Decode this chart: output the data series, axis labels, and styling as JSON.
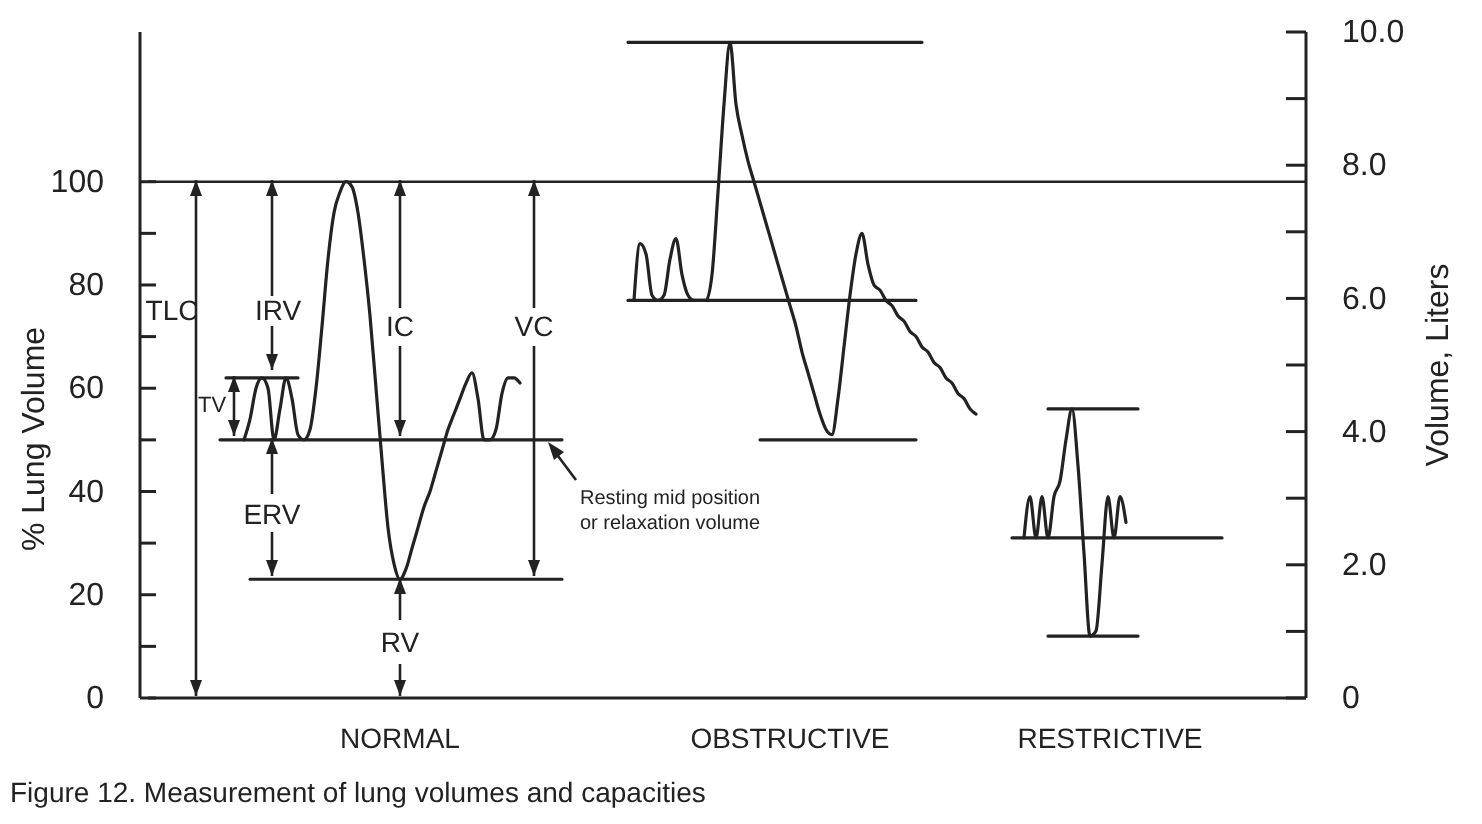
{
  "chart_data": {
    "type": "line",
    "ylabel": "% Lung Volume",
    "y2label": "Volume, Liters",
    "line_style": "solid",
    "categories": [
      null,
      null,
      null,
      null,
      null,
      null,
      null,
      null,
      null,
      null,
      null,
      null,
      null,
      null,
      null,
      null,
      null,
      null,
      null,
      null,
      null,
      null,
      null,
      null,
      null,
      null,
      null,
      null,
      null,
      null,
      null,
      null,
      null,
      null,
      null,
      null,
      null,
      null,
      null,
      null,
      null,
      null,
      null,
      null,
      null,
      null,
      null,
      null,
      null,
      null,
      null,
      null,
      null,
      null,
      null,
      null,
      null,
      null,
      null,
      null,
      null,
      null,
      null,
      null,
      null,
      null,
      null,
      null,
      null,
      null,
      null,
      null,
      null,
      null,
      null,
      null,
      null,
      null,
      null,
      null,
      null,
      null,
      null,
      null,
      null,
      null,
      null,
      null,
      null,
      null,
      null,
      null,
      null,
      null,
      null,
      null,
      null,
      null,
      null,
      null,
      null,
      null,
      null,
      null,
      null,
      null,
      null,
      null,
      null,
      null,
      null,
      null,
      null,
      null,
      null,
      null,
      null,
      null,
      null,
      null,
      null,
      null,
      null,
      null,
      null,
      null,
      null,
      null,
      null,
      null,
      null,
      null,
      null,
      null,
      null,
      null,
      null,
      null,
      null,
      null,
      null,
      null,
      null,
      null,
      null,
      null,
      null,
      null,
      null,
      null,
      null,
      null,
      null,
      null,
      null,
      null,
      null,
      null,
      null,
      null,
      null,
      null,
      null,
      null,
      null,
      null,
      null,
      null,
      null,
      null,
      null,
      null,
      null,
      null,
      null,
      null,
      null,
      null,
      null,
      null,
      null,
      null,
      null,
      null,
      null,
      null,
      null,
      null,
      null,
      null,
      null,
      null,
      null,
      null
    ],
    "ylim": [
      0,
      129
    ],
    "yticks": [
      0,
      {
        "value": 10,
        "label": null
      },
      20,
      {
        "value": 30,
        "label": null
      },
      40,
      {
        "value": 50,
        "label": null
      },
      60,
      {
        "value": 70,
        "label": null
      },
      80,
      {
        "value": 90,
        "label": null
      },
      100
    ],
    "y2lim": [
      0,
      10
    ],
    "y2ticks": [
      0,
      {
        "value": 1,
        "label": null
      },
      {
        "value": 2,
        "label": "2.0"
      },
      {
        "value": 3,
        "label": null
      },
      {
        "value": 4,
        "label": "4.0"
      },
      {
        "value": 5,
        "label": null
      },
      {
        "value": 6,
        "label": "6.0"
      },
      {
        "value": 7,
        "label": null
      },
      {
        "value": 8,
        "label": "8.0"
      },
      {
        "value": 9,
        "label": null
      },
      {
        "value": 10,
        "label": "10.0"
      }
    ],
    "ref_lines": [
      {
        "axis": "y",
        "value": 100,
        "color": "#222222"
      }
    ],
    "series": [
      {
        "color": "#222222",
        "values": [
          null,
          null,
          null,
          null,
          null,
          null,
          null,
          null,
          null,
          null,
          null,
          null,
          50,
          50,
          50,
          50,
          50,
          50,
          50,
          50,
          50,
          50,
          50,
          50,
          50,
          50,
          50,
          50,
          50,
          50,
          50,
          50,
          50,
          50,
          50,
          50,
          50,
          50,
          50,
          50,
          50,
          50,
          50,
          50,
          50,
          50,
          50,
          50,
          50,
          50,
          50,
          50,
          50,
          50,
          50,
          50,
          50,
          50,
          50,
          50,
          50,
          50,
          50,
          50,
          50,
          50,
          50,
          50,
          50,
          50,
          null,
          null,
          null,
          null,
          null,
          null,
          null,
          null,
          null,
          null,
          77,
          77,
          77,
          77,
          77,
          77,
          77,
          77,
          77,
          77,
          77,
          77,
          77,
          77,
          77,
          77,
          77,
          77,
          77,
          77,
          77,
          77,
          77,
          77,
          77,
          77,
          77,
          77,
          77,
          77,
          77,
          77,
          77,
          77,
          77,
          77,
          77,
          77,
          77,
          77,
          77,
          77,
          77,
          77,
          77,
          77,
          77,
          77,
          77,
          null,
          null,
          null,
          null,
          null,
          null,
          null,
          null,
          null,
          null,
          null,
          null,
          null,
          null,
          null,
          31,
          31,
          31,
          31,
          31,
          31,
          31,
          31,
          31,
          31,
          31,
          31,
          31,
          31,
          31,
          31,
          31,
          31,
          31,
          31,
          31,
          31,
          31,
          31,
          31,
          31,
          31,
          31,
          31,
          31,
          31,
          31,
          31,
          31,
          31,
          31,
          null,
          null,
          null,
          null,
          null,
          null,
          null,
          null,
          null,
          null,
          null,
          null,
          null,
          null
        ]
      },
      {
        "color": "#222222",
        "values": [
          null,
          null,
          null,
          null,
          null,
          null,
          null,
          null,
          null,
          null,
          null,
          null,
          null,
          null,
          null,
          null,
          null,
          23,
          23,
          23,
          23,
          23,
          23,
          23,
          23,
          23,
          23,
          23,
          23,
          23,
          23,
          23,
          23,
          23,
          23,
          23,
          23,
          23,
          23,
          23,
          23,
          23,
          23,
          23,
          23,
          23,
          23,
          23,
          23,
          23,
          23,
          23,
          23,
          23,
          23,
          23,
          23,
          23,
          23,
          23,
          23,
          23,
          23,
          23,
          23,
          23,
          23,
          23,
          23,
          23,
          null,
          null,
          null,
          null,
          null,
          null,
          null,
          null,
          null,
          null,
          null,
          null,
          null,
          null,
          null,
          null,
          null,
          null,
          null,
          null,
          null,
          null,
          null,
          null,
          null,
          null,
          null,
          null,
          null,
          null,
          null,
          null,
          50,
          50,
          50,
          50,
          50,
          50,
          50,
          50,
          50,
          50,
          50,
          50,
          50,
          50,
          50,
          50,
          50,
          50,
          50,
          50,
          50,
          50,
          50,
          50,
          50,
          50,
          50,
          null,
          null,
          null,
          null,
          null,
          null,
          null,
          null,
          null,
          null,
          null,
          null,
          null,
          null,
          null,
          null,
          null,
          null,
          null,
          null,
          null,
          56,
          56,
          56,
          56,
          56,
          56,
          56,
          56,
          56,
          56,
          56,
          56,
          56,
          56,
          56,
          56,
          null,
          null,
          null,
          null,
          null,
          null,
          null,
          null,
          null,
          null,
          null,
          null,
          null,
          null,
          null,
          null,
          null,
          null,
          null,
          null,
          null,
          null,
          null,
          null,
          null,
          null,
          null,
          null
        ]
      },
      {
        "color": "#222222",
        "values": [
          null,
          null,
          null,
          null,
          null,
          null,
          null,
          null,
          null,
          null,
          null,
          null,
          null,
          62,
          62,
          62,
          62,
          62,
          62,
          62,
          62,
          62,
          62,
          62,
          62,
          62,
          null,
          null,
          null,
          null,
          null,
          null,
          null,
          null,
          null,
          null,
          null,
          null,
          null,
          null,
          null,
          null,
          null,
          null,
          null,
          null,
          null,
          null,
          null,
          null,
          null,
          null,
          null,
          null,
          null,
          null,
          null,
          null,
          null,
          null,
          null,
          null,
          null,
          null,
          null,
          null,
          null,
          null,
          null,
          null,
          null,
          null,
          null,
          null,
          null,
          null,
          null,
          null,
          null,
          null,
          127,
          127,
          127,
          127,
          127,
          127,
          127,
          127,
          127,
          127,
          127,
          127,
          127,
          127,
          127,
          127,
          127,
          127,
          127,
          127,
          127,
          127,
          127,
          127,
          127,
          127,
          127,
          127,
          127,
          127,
          127,
          127,
          127,
          127,
          127,
          127,
          127,
          127,
          127,
          127,
          127,
          127,
          127,
          127,
          127,
          127,
          127,
          127,
          127,
          127,
          null,
          null,
          null,
          null,
          null,
          null,
          null,
          null,
          null,
          null,
          null,
          null,
          null,
          null,
          null,
          null,
          null,
          null,
          null,
          null,
          12,
          12,
          12,
          12,
          12,
          12,
          12,
          12,
          12,
          12,
          12,
          12,
          12,
          12,
          12,
          12,
          null,
          null,
          null,
          null,
          null,
          null,
          null,
          null,
          null,
          null,
          null,
          null,
          null,
          null,
          null,
          null,
          null,
          null,
          null,
          null,
          null,
          null,
          null,
          null,
          null,
          null,
          null,
          null
        ]
      },
      {
        "color": "#222222",
        "values": [
          null,
          null,
          null,
          null,
          null,
          null,
          null,
          null,
          null,
          null,
          null,
          null,
          null,
          null,
          null,
          null,
          50,
          54,
          60,
          62,
          60,
          50,
          56,
          62,
          58,
          51,
          50,
          52,
          60,
          72,
          85,
          94,
          98,
          100,
          99,
          94,
          85,
          74,
          60,
          46,
          33,
          26,
          23,
          25,
          29,
          33,
          37,
          40,
          44,
          48,
          52,
          55,
          58,
          61,
          63,
          58,
          50,
          50,
          52,
          59,
          62,
          62,
          61,
          null,
          null,
          null,
          null,
          null,
          null,
          null,
          null,
          null,
          null,
          null,
          null,
          null,
          null,
          null,
          null,
          null,
          null,
          77,
          88,
          86,
          78,
          77,
          78,
          85,
          89,
          82,
          78,
          77,
          77,
          77,
          82,
          98,
          115,
          127,
          115,
          109,
          104,
          100,
          96,
          92,
          88,
          84,
          80,
          76,
          72,
          67,
          63,
          59,
          55,
          52,
          51,
          58,
          68,
          78,
          86,
          90,
          84,
          80,
          79,
          77,
          76,
          74,
          73,
          71,
          70,
          68,
          67,
          65,
          64,
          62,
          61,
          59,
          58,
          56,
          55,
          null,
          null,
          null,
          null,
          null,
          null,
          null,
          31,
          39,
          31,
          39,
          31,
          39,
          42,
          50,
          56,
          45,
          28,
          12,
          13,
          26,
          39,
          31,
          39,
          34,
          null,
          null,
          null,
          null,
          null,
          null,
          null,
          null,
          null,
          null,
          null,
          null,
          null,
          null,
          null,
          null,
          null,
          null,
          null,
          null,
          null,
          null,
          null,
          null,
          null,
          null,
          null,
          null,
          null,
          null
        ]
      }
    ],
    "annotations": [
      "TLC",
      "IRV",
      "TV",
      "IC",
      "VC",
      "ERV",
      "RV",
      "Resting mid position or relaxation volume",
      "NORMAL",
      "OBSTRUCTIVE",
      "RESTRICTIVE",
      "Figure 12.  Measurement of lung volumes and capacities"
    ]
  }
}
